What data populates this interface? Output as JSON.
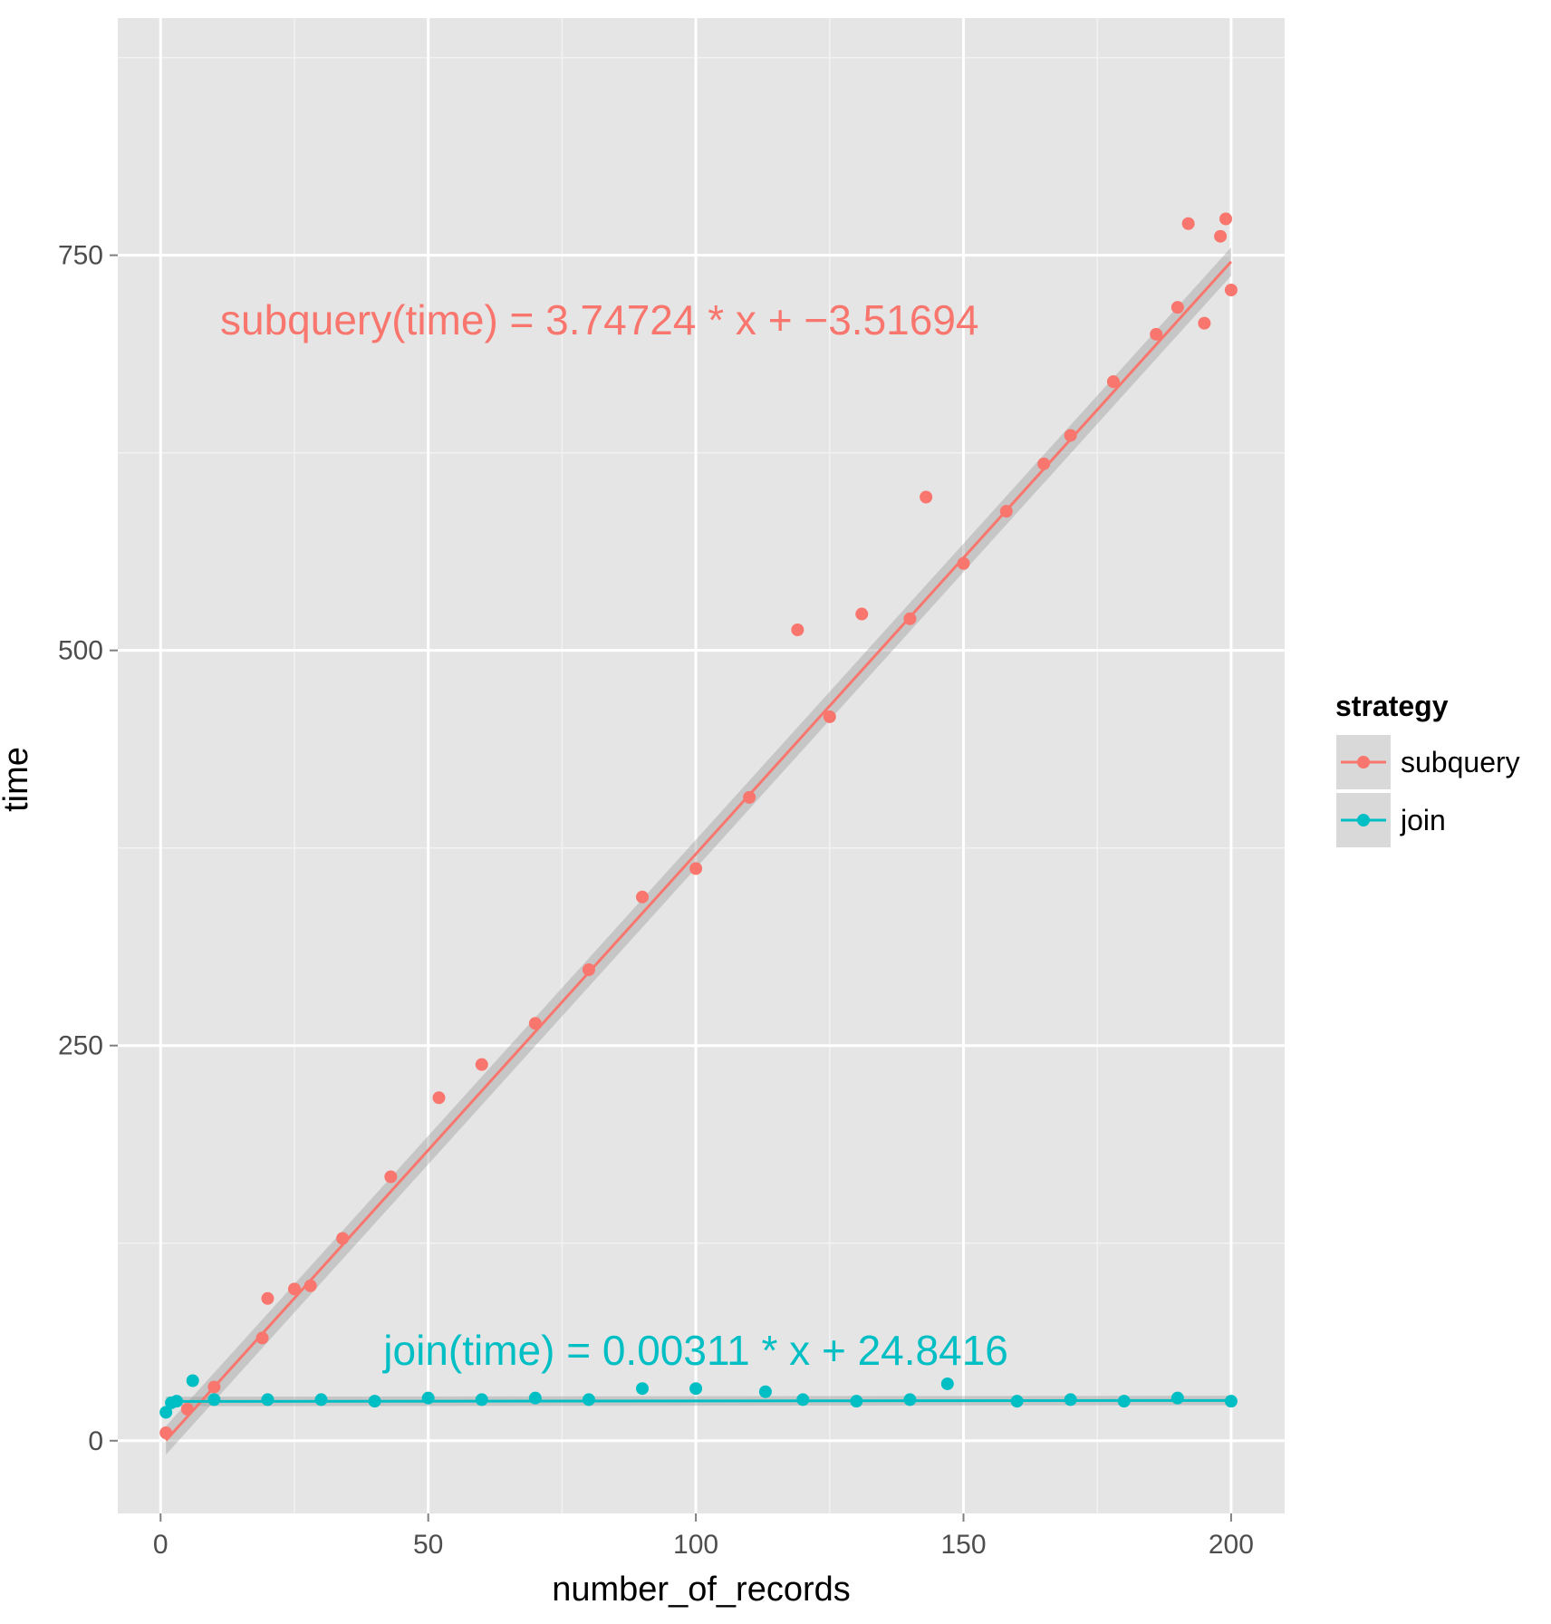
{
  "chart_data": {
    "type": "scatter",
    "xlabel": "number_of_records",
    "ylabel": "time",
    "xlim": [
      -8,
      210
    ],
    "ylim": [
      -46,
      900
    ],
    "x_ticks": [
      0,
      50,
      100,
      150,
      200
    ],
    "x_tick_labels": [
      "0",
      "50",
      "100",
      "150",
      "200"
    ],
    "y_ticks": [
      0,
      250,
      500,
      750
    ],
    "y_tick_labels": [
      "0",
      "250",
      "500",
      "750"
    ],
    "grid": true,
    "legend": {
      "title": "strategy",
      "position": "right",
      "entries": [
        {
          "label": "subquery",
          "color": "#F8766D"
        },
        {
          "label": "join",
          "color": "#00BFC4"
        }
      ]
    },
    "annotations": [
      {
        "text": "subquery(time) =  3.74724  * x +  −3.51694",
        "color": "#F8766D",
        "x": 82,
        "y": 700
      },
      {
        "text": "join(time) =  0.00311  * x +  24.8416",
        "color": "#00BFC4",
        "x": 100,
        "y": 48
      }
    ],
    "series": [
      {
        "name": "subquery",
        "color": "#F8766D",
        "fit": {
          "slope": 3.74724,
          "intercept": -3.51694
        },
        "x": [
          1,
          5,
          10,
          19,
          20,
          25,
          28,
          34,
          43,
          52,
          60,
          70,
          80,
          90,
          100,
          110,
          119,
          125,
          131,
          140,
          143,
          150,
          158,
          165,
          170,
          178,
          186,
          190,
          192,
          195,
          198,
          199,
          200
        ],
        "y": [
          5,
          20,
          34,
          65,
          90,
          96,
          98,
          128,
          167,
          217,
          238,
          264,
          298,
          344,
          362,
          407,
          513,
          458,
          523,
          520,
          597,
          555,
          588,
          618,
          636,
          670,
          700,
          717,
          770,
          707,
          762,
          773,
          728
        ]
      },
      {
        "name": "join",
        "color": "#00BFC4",
        "fit": {
          "slope": 0.00311,
          "intercept": 24.8416
        },
        "x": [
          1,
          2,
          3,
          6,
          10,
          20,
          30,
          40,
          50,
          60,
          70,
          80,
          90,
          100,
          113,
          120,
          130,
          140,
          147,
          160,
          170,
          180,
          190,
          200
        ],
        "y": [
          18,
          24,
          25,
          38,
          26,
          26,
          26,
          25,
          27,
          26,
          27,
          26,
          33,
          33,
          31,
          26,
          25,
          26,
          36,
          25,
          26,
          25,
          27,
          25
        ]
      }
    ]
  }
}
